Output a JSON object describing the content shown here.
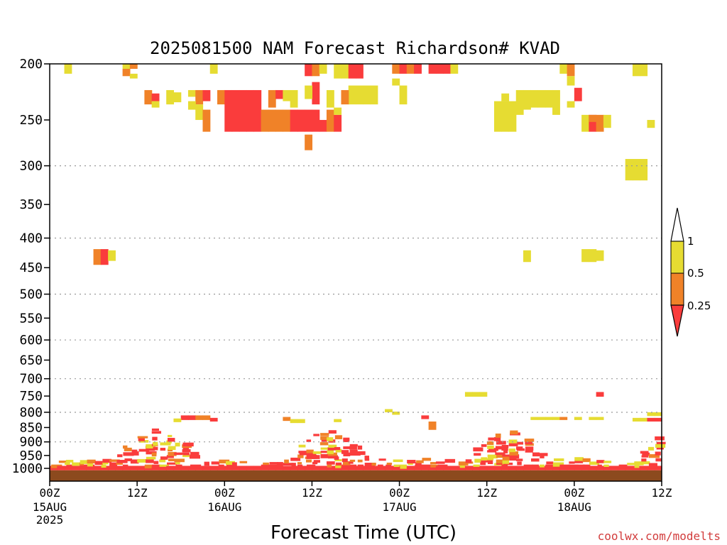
{
  "chart_data": {
    "type": "heatmap",
    "title": "2025081500 NAM Forecast Richardson# KVAD",
    "xlabel": "Forecast Time (UTC)",
    "ylabel": "",
    "x_unit": "forecast hour",
    "xlim": [
      0,
      84
    ],
    "ylim": [
      1000,
      200
    ],
    "y_scale": "log-pressure",
    "y_ticks": [
      "200",
      "250",
      "300",
      "350",
      "400",
      "450",
      "500",
      "550",
      "600",
      "650",
      "700",
      "750",
      "800",
      "850",
      "900",
      "950",
      "1000"
    ],
    "y_tick_values": [
      200,
      250,
      300,
      350,
      400,
      450,
      500,
      550,
      600,
      650,
      700,
      750,
      800,
      850,
      900,
      950,
      1000
    ],
    "gridlines_at": [
      300,
      400,
      500,
      600,
      700,
      800,
      900
    ],
    "x_ticks": [
      {
        "hour": 0,
        "label": "00Z",
        "sub": "15AUG",
        "sub2": "2025"
      },
      {
        "hour": 12,
        "label": "12Z",
        "sub": "",
        "sub2": ""
      },
      {
        "hour": 24,
        "label": "00Z",
        "sub": "16AUG",
        "sub2": ""
      },
      {
        "hour": 36,
        "label": "12Z",
        "sub": "",
        "sub2": ""
      },
      {
        "hour": 48,
        "label": "00Z",
        "sub": "17AUG",
        "sub2": ""
      },
      {
        "hour": 60,
        "label": "12Z",
        "sub": "",
        "sub2": ""
      },
      {
        "hour": 72,
        "label": "00Z",
        "sub": "18AUG",
        "sub2": ""
      },
      {
        "hour": 84,
        "label": "12Z",
        "sub": "",
        "sub2": ""
      }
    ],
    "colorbar": {
      "labels": [
        "1",
        "0.5",
        "0.25"
      ],
      "colors": {
        "above_1": "#ffffff",
        "0.5-1": "#e6dc32",
        "0.25-0.5": "#f08228",
        "below_0.25": "#fa3c3c"
      }
    },
    "ground_color": "#8c4a1e",
    "ground_surface_hpa": 1008,
    "cells": [
      [
        2,
        200,
        208,
        "#e6dc32"
      ],
      [
        10,
        200,
        204,
        "#e6dc32"
      ],
      [
        11,
        200,
        204,
        "#f08228"
      ],
      [
        10,
        204,
        210,
        "#f08228"
      ],
      [
        11,
        208,
        212,
        "#e6dc32"
      ],
      [
        22,
        200,
        208,
        "#e6dc32"
      ],
      [
        13,
        222,
        235,
        "#f08228"
      ],
      [
        14,
        225,
        232,
        "#fa3c3c"
      ],
      [
        14,
        232,
        238,
        "#e6dc32"
      ],
      [
        16,
        222,
        235,
        "#e6dc32"
      ],
      [
        17,
        224,
        233,
        "#e6dc32"
      ],
      [
        19,
        222,
        228,
        "#e6dc32"
      ],
      [
        20,
        222,
        235,
        "#f08228"
      ],
      [
        21,
        222,
        232,
        "#fa3c3c"
      ],
      [
        19,
        232,
        240,
        "#e6dc32"
      ],
      [
        20,
        235,
        250,
        "#e6dc32"
      ],
      [
        21,
        240,
        262,
        "#f08228"
      ],
      [
        23,
        222,
        235,
        "#f08228"
      ],
      [
        24,
        222,
        262,
        "#fa3c3c"
      ],
      [
        25,
        222,
        262,
        "#fa3c3c"
      ],
      [
        26,
        222,
        262,
        "#fa3c3c"
      ],
      [
        27,
        222,
        262,
        "#fa3c3c"
      ],
      [
        28,
        222,
        262,
        "#fa3c3c"
      ],
      [
        29,
        240,
        262,
        "#f08228"
      ],
      [
        30,
        240,
        262,
        "#f08228"
      ],
      [
        31,
        240,
        262,
        "#f08228"
      ],
      [
        32,
        240,
        262,
        "#f08228"
      ],
      [
        30,
        222,
        238,
        "#f08228"
      ],
      [
        31,
        222,
        230,
        "#fa3c3c"
      ],
      [
        32,
        222,
        232,
        "#e6dc32"
      ],
      [
        33,
        222,
        238,
        "#e6dc32"
      ],
      [
        33,
        240,
        262,
        "#fa3c3c"
      ],
      [
        34,
        240,
        262,
        "#fa3c3c"
      ],
      [
        35,
        240,
        262,
        "#fa3c3c"
      ],
      [
        36,
        240,
        262,
        "#fa3c3c"
      ],
      [
        37,
        250,
        262,
        "#fa3c3c"
      ],
      [
        35,
        200,
        210,
        "#fa3c3c"
      ],
      [
        36,
        200,
        210,
        "#f08228"
      ],
      [
        37,
        200,
        208,
        "#e6dc32"
      ],
      [
        36,
        215,
        235,
        "#fa3c3c"
      ],
      [
        35,
        218,
        230,
        "#e6dc32"
      ],
      [
        35,
        265,
        282,
        "#f08228"
      ],
      [
        38,
        222,
        238,
        "#e6dc32"
      ],
      [
        38,
        240,
        262,
        "#f08228"
      ],
      [
        39,
        245,
        262,
        "#fa3c3c"
      ],
      [
        39,
        238,
        245,
        "#e6dc32"
      ],
      [
        39,
        200,
        212,
        "#e6dc32"
      ],
      [
        40,
        200,
        212,
        "#e6dc32"
      ],
      [
        41,
        200,
        212,
        "#fa3c3c"
      ],
      [
        42,
        200,
        212,
        "#fa3c3c"
      ],
      [
        41,
        218,
        235,
        "#e6dc32"
      ],
      [
        42,
        218,
        235,
        "#e6dc32"
      ],
      [
        43,
        218,
        235,
        "#e6dc32"
      ],
      [
        44,
        218,
        235,
        "#e6dc32"
      ],
      [
        40,
        222,
        235,
        "#f08228"
      ],
      [
        47,
        200,
        208,
        "#f08228"
      ],
      [
        48,
        200,
        208,
        "#fa3c3c"
      ],
      [
        49,
        200,
        208,
        "#f08228"
      ],
      [
        50,
        200,
        208,
        "#fa3c3c"
      ],
      [
        47,
        212,
        218,
        "#e6dc32"
      ],
      [
        48,
        218,
        235,
        "#e6dc32"
      ],
      [
        52,
        200,
        208,
        "#fa3c3c"
      ],
      [
        53,
        200,
        208,
        "#fa3c3c"
      ],
      [
        54,
        200,
        208,
        "#fa3c3c"
      ],
      [
        55,
        200,
        208,
        "#e6dc32"
      ],
      [
        61,
        232,
        262,
        "#e6dc32"
      ],
      [
        62,
        232,
        262,
        "#e6dc32"
      ],
      [
        63,
        232,
        262,
        "#e6dc32"
      ],
      [
        62,
        225,
        232,
        "#e6dc32"
      ],
      [
        64,
        222,
        245,
        "#e6dc32"
      ],
      [
        65,
        222,
        240,
        "#e6dc32"
      ],
      [
        66,
        222,
        238,
        "#e6dc32"
      ],
      [
        67,
        222,
        238,
        "#e6dc32"
      ],
      [
        68,
        222,
        238,
        "#e6dc32"
      ],
      [
        69,
        222,
        245,
        "#e6dc32"
      ],
      [
        70,
        200,
        208,
        "#e6dc32"
      ],
      [
        71,
        200,
        210,
        "#f08228"
      ],
      [
        71,
        210,
        218,
        "#e6dc32"
      ],
      [
        72,
        220,
        232,
        "#fa3c3c"
      ],
      [
        71,
        232,
        238,
        "#e6dc32"
      ],
      [
        73,
        245,
        262,
        "#e6dc32"
      ],
      [
        74,
        245,
        262,
        "#fa3c3c"
      ],
      [
        75,
        245,
        262,
        "#f08228"
      ],
      [
        76,
        245,
        258,
        "#e6dc32"
      ],
      [
        74,
        245,
        252,
        "#f08228"
      ],
      [
        80,
        200,
        210,
        "#e6dc32"
      ],
      [
        81,
        200,
        210,
        "#e6dc32"
      ],
      [
        82,
        250,
        258,
        "#e6dc32"
      ],
      [
        79,
        292,
        318,
        "#e6dc32"
      ],
      [
        80,
        292,
        318,
        "#e6dc32"
      ],
      [
        81,
        292,
        318,
        "#e6dc32"
      ],
      [
        6,
        418,
        445,
        "#f08228"
      ],
      [
        7,
        418,
        445,
        "#fa3c3c"
      ],
      [
        8,
        420,
        438,
        "#e6dc32"
      ],
      [
        65,
        420,
        440,
        "#e6dc32"
      ],
      [
        73,
        418,
        440,
        "#e6dc32"
      ],
      [
        74,
        418,
        440,
        "#e6dc32"
      ],
      [
        75,
        420,
        438,
        "#e6dc32"
      ],
      [
        57,
        738,
        752,
        "#e6dc32"
      ],
      [
        58,
        738,
        752,
        "#e6dc32"
      ],
      [
        59,
        738,
        752,
        "#e6dc32"
      ],
      [
        75,
        738,
        752,
        "#fa3c3c"
      ],
      [
        18,
        810,
        825,
        "#fa3c3c"
      ],
      [
        19,
        810,
        825,
        "#fa3c3c"
      ],
      [
        20,
        810,
        825,
        "#f08228"
      ],
      [
        21,
        810,
        825,
        "#f08228"
      ],
      [
        22,
        818,
        830,
        "#fa3c3c"
      ],
      [
        17,
        820,
        832,
        "#e6dc32"
      ],
      [
        32,
        815,
        828,
        "#f08228"
      ],
      [
        33,
        822,
        835,
        "#e6dc32"
      ],
      [
        34,
        822,
        835,
        "#e6dc32"
      ],
      [
        39,
        822,
        832,
        "#e6dc32"
      ],
      [
        46,
        790,
        800,
        "#e6dc32"
      ],
      [
        47,
        798,
        808,
        "#e6dc32"
      ],
      [
        51,
        810,
        822,
        "#fa3c3c"
      ],
      [
        52,
        830,
        858,
        "#f08228"
      ],
      [
        66,
        815,
        825,
        "#e6dc32"
      ],
      [
        67,
        815,
        825,
        "#e6dc32"
      ],
      [
        68,
        815,
        825,
        "#e6dc32"
      ],
      [
        69,
        815,
        825,
        "#e6dc32"
      ],
      [
        70,
        815,
        825,
        "#f08228"
      ],
      [
        72,
        815,
        825,
        "#e6dc32"
      ],
      [
        74,
        815,
        825,
        "#e6dc32"
      ],
      [
        75,
        815,
        825,
        "#e6dc32"
      ],
      [
        80,
        818,
        830,
        "#e6dc32"
      ],
      [
        81,
        818,
        830,
        "#e6dc32"
      ],
      [
        82,
        818,
        830,
        "#fa3c3c"
      ],
      [
        82,
        800,
        812,
        "#e6dc32"
      ],
      [
        83,
        800,
        812,
        "#e6dc32"
      ],
      [
        83,
        818,
        830,
        "#fa3c3c"
      ]
    ],
    "low_layer": {
      "below_0.25": "#fa3c3c",
      "bands_hpa": [
        [
          960,
          975
        ],
        [
          975,
          990
        ]
      ]
    }
  }
}
